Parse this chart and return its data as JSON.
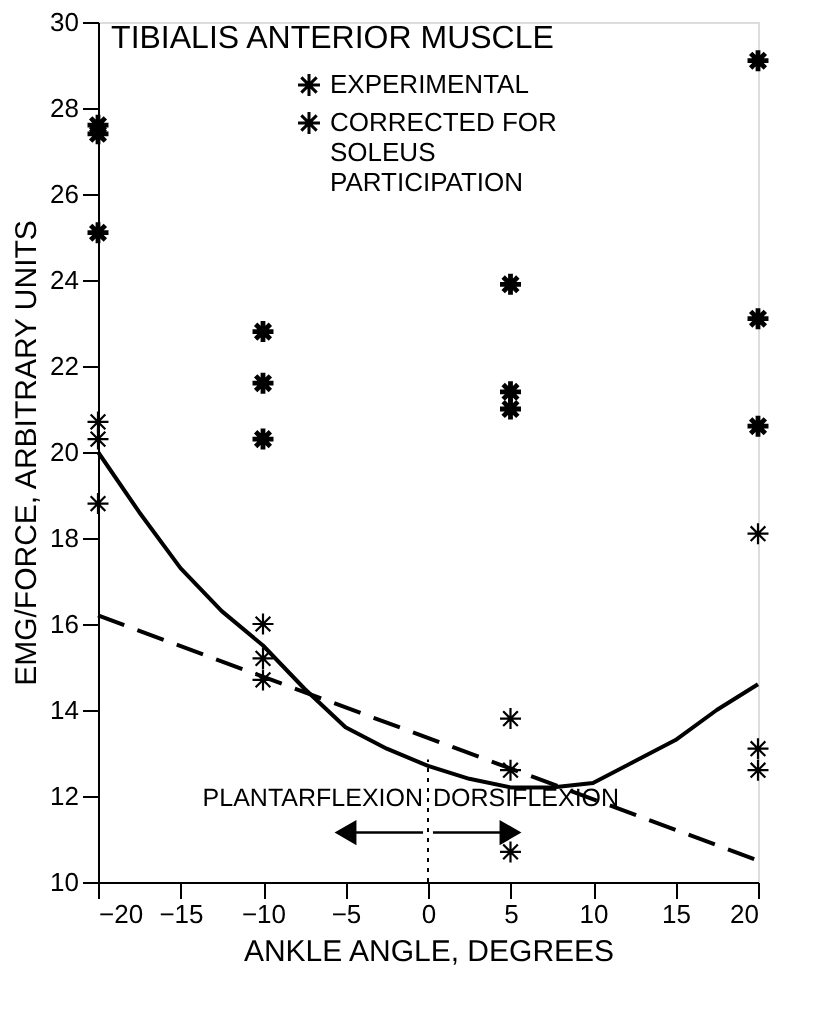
{
  "chart_data": {
    "type": "scatter",
    "title": "TIBIALIS ANTERIOR MUSCLE",
    "xlabel": "ANKLE ANGLE, DEGREES",
    "ylabel": "EMG/FORCE, ARBITRARY UNITS",
    "xlim": [
      -20,
      20
    ],
    "ylim": [
      10,
      30
    ],
    "xticks": [
      -20,
      -15,
      -10,
      -5,
      0,
      5,
      10,
      15,
      20
    ],
    "yticks": [
      10,
      12,
      14,
      16,
      18,
      20,
      22,
      24,
      26,
      28,
      30
    ],
    "grid": false,
    "legend": "top",
    "series": [
      {
        "name": "EXPERIMENTAL",
        "marker": "cross",
        "color": "#000000",
        "x": [
          -20,
          -20,
          -20,
          -10,
          -10,
          -10,
          5,
          5,
          5,
          20,
          20,
          20
        ],
        "values": [
          27.6,
          27.4,
          25.1,
          22.8,
          21.6,
          20.3,
          23.9,
          21.4,
          21.0,
          29.1,
          23.1,
          20.6
        ]
      },
      {
        "name": "CORRECTED FOR SOLEUS PARTICIPATION",
        "marker": "cross",
        "color": "#000000",
        "x": [
          -20,
          -20,
          -20,
          -10,
          -10,
          -10,
          5,
          5,
          5,
          20,
          20,
          20
        ],
        "values": [
          20.7,
          20.3,
          18.8,
          16.0,
          15.2,
          14.7,
          13.8,
          12.6,
          10.7,
          18.1,
          13.1,
          12.6
        ]
      },
      {
        "type": "line",
        "marker": "none",
        "color": "#000000",
        "line_style": "solid",
        "x": [
          -20,
          -17.5,
          -15,
          -12.5,
          -10,
          -7.5,
          -5,
          -2.5,
          0,
          2.5,
          5,
          7.5,
          10,
          12.5,
          15,
          17.5,
          20
        ],
        "values": [
          20.0,
          18.6,
          17.3,
          16.3,
          15.5,
          14.5,
          13.6,
          13.1,
          12.7,
          12.4,
          12.2,
          12.2,
          12.3,
          12.8,
          13.3,
          14.0,
          14.6
        ]
      },
      {
        "type": "line",
        "marker": "none",
        "color": "#000000",
        "line_style": "dashed",
        "x": [
          -20,
          20
        ],
        "values": [
          16.2,
          10.5
        ]
      }
    ],
    "ref_lines": [
      {
        "axis": "x",
        "value": 0,
        "line_style": "dotted"
      }
    ],
    "annotations": [
      {
        "text": "PLANTARFLEXION",
        "x": -0.3,
        "y": 11.95
      },
      {
        "text": "DORSIFLEXION",
        "x": 0.3,
        "y": 11.95
      }
    ]
  }
}
